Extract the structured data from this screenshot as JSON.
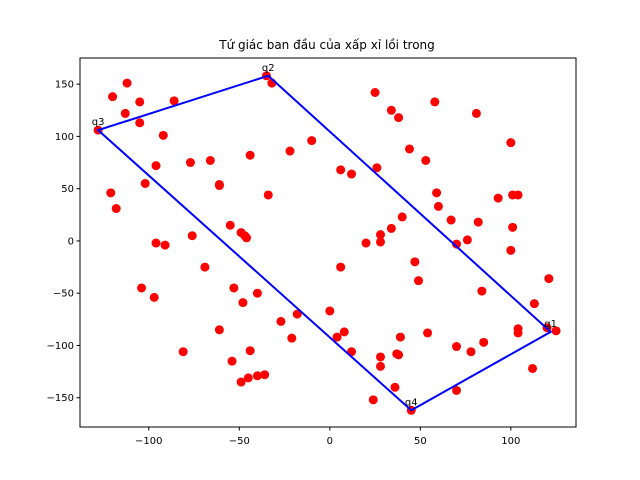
{
  "chart_data": {
    "type": "scatter",
    "title": "Tứ giác ban đầu của xấp xỉ lồi trong",
    "xlabel": "",
    "ylabel": "",
    "xlim": [
      -138,
      136
    ],
    "ylim": [
      -178,
      175
    ],
    "xticks": [
      -100,
      -50,
      0,
      50,
      100
    ],
    "yticks": [
      -150,
      -100,
      -50,
      0,
      50,
      100,
      150
    ],
    "grid": false,
    "point_color": "#ff0000",
    "line_color": "#0000ff",
    "points": [
      [
        -112,
        151
      ],
      [
        -120,
        138
      ],
      [
        -105,
        133
      ],
      [
        -86,
        134
      ],
      [
        -113,
        122
      ],
      [
        -105,
        113
      ],
      [
        -128,
        106
      ],
      [
        -92,
        101
      ],
      [
        -96,
        72
      ],
      [
        -77,
        75
      ],
      [
        -66,
        77
      ],
      [
        -44,
        82
      ],
      [
        -35,
        158
      ],
      [
        -32,
        151
      ],
      [
        -22,
        86
      ],
      [
        -10,
        96
      ],
      [
        -121,
        46
      ],
      [
        -118,
        31
      ],
      [
        -102,
        55
      ],
      [
        -61,
        54
      ],
      [
        -61,
        53
      ],
      [
        -34,
        44
      ],
      [
        -96,
        -2
      ],
      [
        -91,
        -4
      ],
      [
        -76,
        5
      ],
      [
        -55,
        15
      ],
      [
        -49,
        8
      ],
      [
        -47,
        5
      ],
      [
        -46,
        3
      ],
      [
        -69,
        -25
      ],
      [
        -104,
        -45
      ],
      [
        -97,
        -54
      ],
      [
        -53,
        -45
      ],
      [
        -48,
        -59
      ],
      [
        -40,
        -50
      ],
      [
        -18,
        -70
      ],
      [
        -27,
        -77
      ],
      [
        -61,
        -85
      ],
      [
        -81,
        -106
      ],
      [
        -44,
        -105
      ],
      [
        -54,
        -115
      ],
      [
        -21,
        -93
      ],
      [
        -49,
        -135
      ],
      [
        -45,
        -131
      ],
      [
        -40,
        -129
      ],
      [
        -36,
        -128
      ],
      [
        25,
        142
      ],
      [
        34,
        125
      ],
      [
        38,
        118
      ],
      [
        58,
        133
      ],
      [
        81,
        122
      ],
      [
        100,
        94
      ],
      [
        26,
        70
      ],
      [
        6,
        68
      ],
      [
        12,
        64
      ],
      [
        44,
        88
      ],
      [
        53,
        77
      ],
      [
        59,
        46
      ],
      [
        60,
        33
      ],
      [
        67,
        20
      ],
      [
        82,
        18
      ],
      [
        93,
        41
      ],
      [
        101,
        44
      ],
      [
        104,
        44
      ],
      [
        101,
        13
      ],
      [
        100,
        -9
      ],
      [
        40,
        23
      ],
      [
        34,
        12
      ],
      [
        28,
        6
      ],
      [
        20,
        -2
      ],
      [
        28,
        -1
      ],
      [
        6,
        -25
      ],
      [
        47,
        -20
      ],
      [
        49,
        -38
      ],
      [
        70,
        -3
      ],
      [
        76,
        1
      ],
      [
        84,
        -48
      ],
      [
        85,
        -97
      ],
      [
        113,
        -60
      ],
      [
        104,
        -84
      ],
      [
        104,
        -88
      ],
      [
        120,
        -83
      ],
      [
        125,
        -86
      ],
      [
        121,
        -36
      ],
      [
        112,
        -122
      ],
      [
        0,
        -67
      ],
      [
        4,
        -92
      ],
      [
        8,
        -87
      ],
      [
        12,
        -106
      ],
      [
        28,
        -111
      ],
      [
        28,
        -120
      ],
      [
        37,
        -108
      ],
      [
        38,
        -109
      ],
      [
        39,
        -92
      ],
      [
        54,
        -88
      ],
      [
        70,
        -101
      ],
      [
        78,
        -106
      ],
      [
        70,
        -143
      ],
      [
        36,
        -140
      ],
      [
        24,
        -152
      ],
      [
        45,
        -162
      ]
    ],
    "polygon": [
      {
        "label": "q1",
        "x": 122,
        "y": -87
      },
      {
        "label": "q2",
        "x": -34,
        "y": 158
      },
      {
        "label": "q3",
        "x": -128,
        "y": 106
      },
      {
        "label": "q4",
        "x": 45,
        "y": -162
      }
    ]
  }
}
